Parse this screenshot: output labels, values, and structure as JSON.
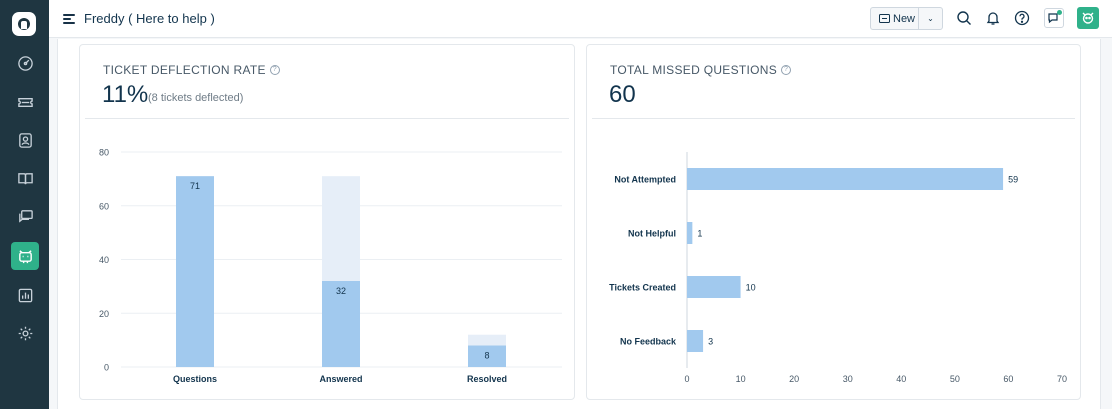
{
  "header": {
    "title": "Freddy ( Here to help )",
    "new_label": "New"
  },
  "sidebar": {
    "items": [
      {
        "icon": "dashboard-icon"
      },
      {
        "icon": "tickets-icon"
      },
      {
        "icon": "contacts-icon"
      },
      {
        "icon": "solutions-icon"
      },
      {
        "icon": "forums-icon"
      },
      {
        "icon": "freddy-icon",
        "active": true
      },
      {
        "icon": "reports-icon"
      },
      {
        "icon": "admin-gear-icon"
      }
    ]
  },
  "deflection_card": {
    "title": "TICKET DEFLECTION RATE",
    "value": "11%",
    "subtext": "(8 tickets deflected)"
  },
  "missed_card": {
    "title": "TOTAL MISSED QUESTIONS",
    "value": "60"
  },
  "colors": {
    "bar": "#a1c9ee",
    "bar_background": "#e6eef8",
    "accent": "#2fb18a"
  },
  "chart_data": [
    {
      "type": "bar",
      "categories": [
        "Questions",
        "Answered",
        "Resolved"
      ],
      "values": [
        71,
        32,
        8
      ],
      "background_values": [
        71,
        71,
        12
      ],
      "ylim": [
        0,
        80
      ],
      "yticks": [
        0,
        20,
        40,
        60,
        80
      ],
      "grid": true
    },
    {
      "type": "bar",
      "orientation": "horizontal",
      "categories": [
        "Not Attempted",
        "Not Helpful",
        "Tickets Created",
        "No Feedback"
      ],
      "values": [
        59,
        1,
        10,
        3
      ],
      "xlim": [
        0,
        70
      ],
      "xticks": [
        0,
        10,
        20,
        30,
        40,
        50,
        60,
        70
      ],
      "grid": false
    }
  ]
}
